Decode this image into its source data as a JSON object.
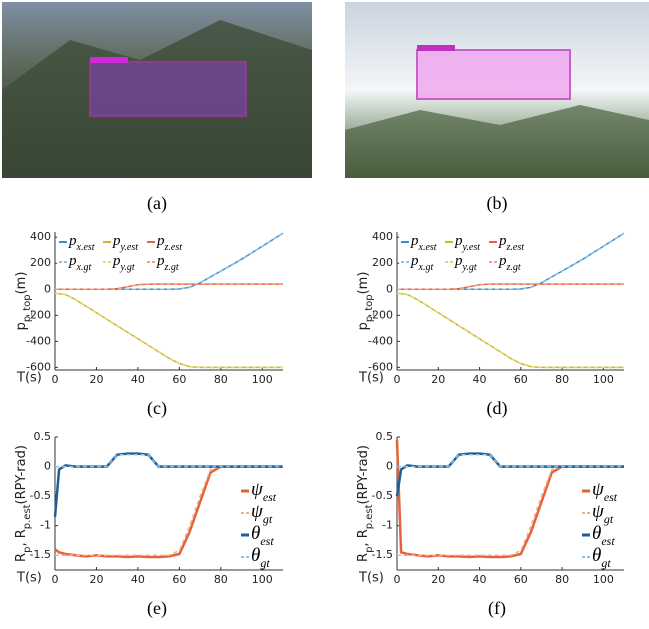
{
  "captions": [
    "(a)",
    "(b)",
    "(c)",
    "(d)",
    "(e)",
    "(f)"
  ],
  "chart_data": [
    {
      "type": "line",
      "xlabel": "T(s)",
      "ylabel": [
        "p",
        "p_top",
        "(m)"
      ],
      "legend": "upper left",
      "grid": false,
      "x": [
        0,
        5,
        10,
        15,
        20,
        25,
        30,
        35,
        40,
        45,
        50,
        55,
        60,
        65,
        70,
        75,
        80,
        85,
        90,
        95,
        100,
        105,
        110
      ],
      "xlim": [
        0,
        110
      ],
      "xticks": [
        0,
        20,
        40,
        60,
        80,
        100
      ],
      "ylim": [
        -620,
        440
      ],
      "yticks": [
        -600,
        -400,
        -200,
        0,
        200,
        400
      ],
      "series": [
        {
          "name": "p",
          "subscript": "x.est",
          "color": "#3a8fd0",
          "style": "solid",
          "values": [
            0,
            0,
            0,
            0,
            0,
            0,
            0,
            0,
            0,
            0,
            0,
            0,
            2,
            15,
            50,
            95,
            140,
            185,
            230,
            280,
            330,
            380,
            430
          ]
        },
        {
          "name": "p",
          "subscript": "y.est",
          "color": "#c9b82a",
          "style": "solid",
          "values": [
            -30,
            -40,
            -80,
            -130,
            -180,
            -230,
            -280,
            -330,
            -380,
            -430,
            -480,
            -530,
            -570,
            -595,
            -600,
            -600,
            -600,
            -600,
            -600,
            -600,
            -600,
            -600,
            -600
          ]
        },
        {
          "name": "p",
          "subscript": "z.est",
          "color": "#e5633a",
          "style": "solid",
          "values": [
            0,
            0,
            0,
            0,
            0,
            0,
            5,
            20,
            35,
            40,
            40,
            40,
            40,
            40,
            40,
            40,
            40,
            40,
            40,
            40,
            40,
            40,
            40
          ]
        },
        {
          "name": "p",
          "subscript": "x.gt",
          "color": "#8cc2ea",
          "style": "dashed",
          "values": [
            0,
            0,
            0,
            0,
            0,
            0,
            0,
            0,
            0,
            0,
            0,
            0,
            2,
            15,
            50,
            95,
            140,
            185,
            230,
            280,
            330,
            380,
            430
          ]
        },
        {
          "name": "p",
          "subscript": "y.gt",
          "color": "#e3d877",
          "style": "dashed",
          "values": [
            -30,
            -40,
            -80,
            -130,
            -180,
            -230,
            -280,
            -330,
            -380,
            -430,
            -480,
            -530,
            -570,
            -595,
            -600,
            -600,
            -600,
            -600,
            -600,
            -600,
            -600,
            -600,
            -600
          ]
        },
        {
          "name": "p",
          "subscript": "z.gt",
          "color": "#f0a184",
          "style": "dashed",
          "values": [
            0,
            0,
            0,
            0,
            0,
            0,
            5,
            20,
            35,
            40,
            40,
            40,
            40,
            40,
            40,
            40,
            40,
            40,
            40,
            40,
            40,
            40,
            40
          ]
        }
      ]
    },
    {
      "type": "line",
      "xlabel": "T(s)",
      "ylabel": [
        "p",
        "p_top",
        "(m)"
      ],
      "legend": "upper left",
      "grid": false,
      "x": [
        0,
        5,
        10,
        15,
        20,
        25,
        30,
        35,
        40,
        45,
        50,
        55,
        60,
        65,
        70,
        75,
        80,
        85,
        90,
        95,
        100,
        105,
        110
      ],
      "xlim": [
        0,
        110
      ],
      "xticks": [
        0,
        20,
        40,
        60,
        80,
        100
      ],
      "ylim": [
        -620,
        440
      ],
      "yticks": [
        -600,
        -400,
        -200,
        0,
        200,
        400
      ],
      "series": [
        {
          "name": "p",
          "subscript": "x.est",
          "color": "#3a8fd0",
          "style": "solid",
          "values": [
            0,
            0,
            0,
            0,
            0,
            0,
            0,
            0,
            0,
            0,
            0,
            0,
            2,
            15,
            50,
            95,
            140,
            185,
            230,
            280,
            330,
            380,
            430
          ]
        },
        {
          "name": "p",
          "subscript": "y.est",
          "color": "#c9b82a",
          "style": "solid",
          "values": [
            -30,
            -40,
            -80,
            -130,
            -180,
            -230,
            -280,
            -330,
            -380,
            -430,
            -480,
            -530,
            -570,
            -595,
            -600,
            -600,
            -600,
            -600,
            -600,
            -600,
            -600,
            -600,
            -600
          ]
        },
        {
          "name": "p",
          "subscript": "z.est",
          "color": "#e5633a",
          "style": "solid",
          "values": [
            0,
            0,
            0,
            0,
            0,
            0,
            5,
            20,
            35,
            40,
            40,
            40,
            40,
            40,
            40,
            40,
            40,
            40,
            40,
            40,
            40,
            40,
            40
          ]
        },
        {
          "name": "p",
          "subscript": "x.gt",
          "color": "#8cc2ea",
          "style": "dashed",
          "values": [
            0,
            0,
            0,
            0,
            0,
            0,
            0,
            0,
            0,
            0,
            0,
            0,
            2,
            15,
            50,
            95,
            140,
            185,
            230,
            280,
            330,
            380,
            430
          ]
        },
        {
          "name": "p",
          "subscript": "y.gt",
          "color": "#e3d877",
          "style": "dashed",
          "values": [
            -30,
            -40,
            -80,
            -130,
            -180,
            -230,
            -280,
            -330,
            -380,
            -430,
            -480,
            -530,
            -570,
            -595,
            -600,
            -600,
            -600,
            -600,
            -600,
            -600,
            -600,
            -600,
            -600
          ]
        },
        {
          "name": "p",
          "subscript": "z.gt",
          "color": "#f0a184",
          "style": "dashed",
          "values": [
            0,
            0,
            0,
            0,
            0,
            0,
            5,
            20,
            35,
            40,
            40,
            40,
            40,
            40,
            40,
            40,
            40,
            40,
            40,
            40,
            40,
            40,
            40
          ]
        }
      ]
    },
    {
      "type": "line",
      "xlabel": "T(s)",
      "ylabel": [
        "R",
        "p",
        ", R",
        "p.est",
        "(RPY-rad)"
      ],
      "legend": "right",
      "grid": false,
      "x": [
        0,
        2,
        5,
        10,
        15,
        20,
        25,
        30,
        35,
        40,
        45,
        50,
        55,
        60,
        65,
        70,
        75,
        80,
        85,
        90,
        95,
        100,
        105,
        110
      ],
      "xlim": [
        0,
        110
      ],
      "xticks": [
        0,
        20,
        40,
        60,
        80,
        100
      ],
      "ylim": [
        -1.75,
        0.5
      ],
      "yticks": [
        0.5,
        0,
        -0.5,
        -1,
        -1.5
      ],
      "series": [
        {
          "name": "ψ",
          "subscript": "est",
          "color": "#e5633a",
          "style": "thick",
          "values": [
            -1.4,
            -1.45,
            -1.48,
            -1.5,
            -1.52,
            -1.5,
            -1.52,
            -1.52,
            -1.53,
            -1.52,
            -1.53,
            -1.53,
            -1.52,
            -1.48,
            -1.1,
            -0.6,
            -0.1,
            0,
            0,
            0,
            0,
            0,
            0,
            0
          ]
        },
        {
          "name": "ψ",
          "subscript": "gt",
          "color": "#f0b090",
          "style": "dashed",
          "values": [
            -1.5,
            -1.5,
            -1.5,
            -1.5,
            -1.5,
            -1.5,
            -1.5,
            -1.5,
            -1.5,
            -1.5,
            -1.5,
            -1.5,
            -1.5,
            -1.42,
            -1.0,
            -0.5,
            -0.05,
            0,
            0,
            0,
            0,
            0,
            0,
            0
          ]
        },
        {
          "name": "θ",
          "subscript": "est",
          "color": "#1f5f99",
          "style": "thick",
          "values": [
            -0.85,
            -0.05,
            0.02,
            0,
            0,
            0,
            0,
            0.2,
            0.22,
            0.22,
            0.2,
            0,
            0,
            0,
            0,
            0,
            0,
            0,
            0,
            0,
            0,
            0,
            0,
            0
          ]
        },
        {
          "name": "θ",
          "subscript": "gt",
          "color": "#8cc2ea",
          "style": "dashed",
          "values": [
            0,
            0,
            0,
            0,
            0,
            0,
            0,
            0.2,
            0.2,
            0.2,
            0.2,
            0,
            0,
            0,
            0,
            0,
            0,
            0,
            0,
            0,
            0,
            0,
            0,
            0
          ]
        }
      ]
    },
    {
      "type": "line",
      "xlabel": "T(s)",
      "ylabel": [
        "R",
        "p",
        ", R",
        "p.est",
        "(RPY-rad)"
      ],
      "legend": "right",
      "grid": false,
      "x": [
        0,
        2,
        5,
        10,
        15,
        20,
        25,
        30,
        35,
        40,
        45,
        50,
        55,
        60,
        65,
        70,
        75,
        80,
        85,
        90,
        95,
        100,
        105,
        110
      ],
      "xlim": [
        0,
        110
      ],
      "xticks": [
        0,
        20,
        40,
        60,
        80,
        100
      ],
      "ylim": [
        -1.75,
        0.5
      ],
      "yticks": [
        0.5,
        0,
        -0.5,
        -1,
        -1.5
      ],
      "series": [
        {
          "name": "ψ",
          "subscript": "est",
          "color": "#e5633a",
          "style": "thick",
          "values": [
            0.45,
            -1.45,
            -1.48,
            -1.5,
            -1.52,
            -1.5,
            -1.52,
            -1.52,
            -1.53,
            -1.52,
            -1.53,
            -1.53,
            -1.52,
            -1.48,
            -1.1,
            -0.6,
            -0.1,
            0,
            0,
            0,
            0,
            0,
            0,
            0
          ]
        },
        {
          "name": "ψ",
          "subscript": "gt",
          "color": "#f0b090",
          "style": "dashed",
          "values": [
            -1.5,
            -1.5,
            -1.5,
            -1.5,
            -1.5,
            -1.5,
            -1.5,
            -1.5,
            -1.5,
            -1.5,
            -1.5,
            -1.5,
            -1.5,
            -1.42,
            -1.0,
            -0.5,
            -0.05,
            0,
            0,
            0,
            0,
            0,
            0,
            0
          ]
        },
        {
          "name": "θ",
          "subscript": "est",
          "color": "#1f5f99",
          "style": "thick",
          "values": [
            -0.5,
            -0.05,
            0.02,
            0,
            0,
            0,
            0,
            0.2,
            0.22,
            0.22,
            0.2,
            0,
            0,
            0,
            0,
            0,
            0,
            0,
            0,
            0,
            0,
            0,
            0,
            0
          ]
        },
        {
          "name": "θ",
          "subscript": "gt",
          "color": "#8cc2ea",
          "style": "dashed",
          "values": [
            0,
            0,
            0,
            0,
            0,
            0,
            0,
            0.2,
            0.2,
            0.2,
            0.2,
            0,
            0,
            0,
            0,
            0,
            0,
            0,
            0,
            0,
            0,
            0,
            0,
            0
          ]
        }
      ]
    }
  ]
}
